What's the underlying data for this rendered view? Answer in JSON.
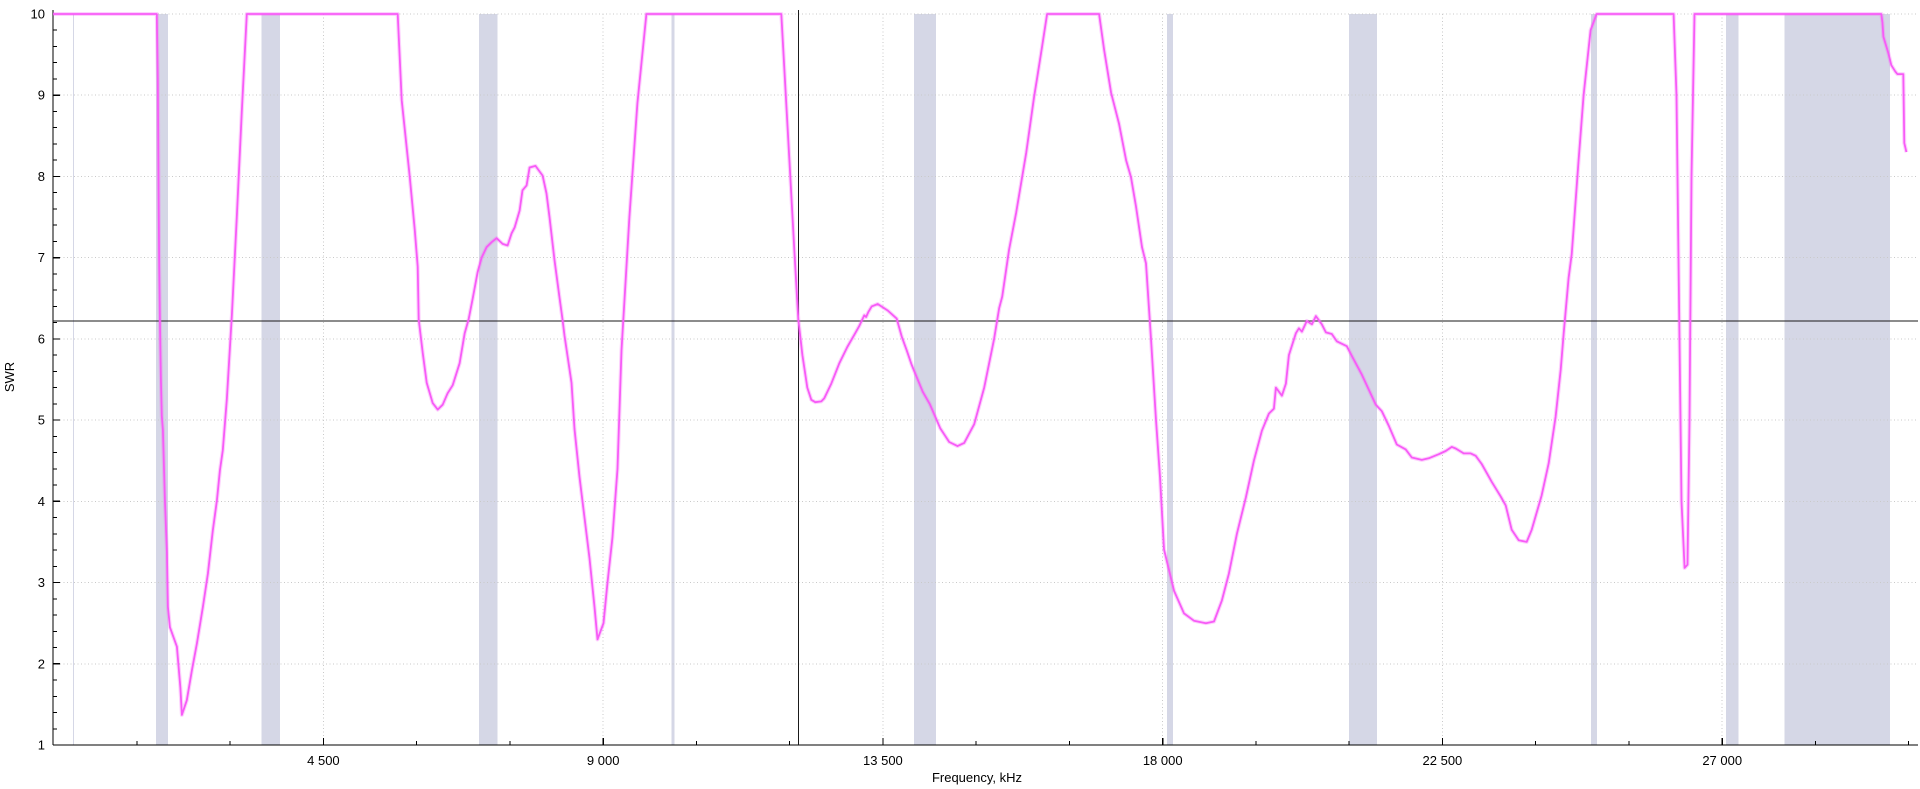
{
  "chart_data": {
    "type": "line",
    "title": "",
    "xlabel": "Frequency, kHz",
    "ylabel": "SWR",
    "x_domain": [
      150,
      30150
    ],
    "y_domain": [
      1,
      10
    ],
    "x_major_ticks": [
      4500,
      9000,
      13500,
      18000,
      22500,
      27000
    ],
    "x_tick_labels": [
      "4 500",
      "9 000",
      "13 500",
      "18 000",
      "22 500",
      "27 000"
    ],
    "x_minor_step": 1500,
    "y_major_ticks": [
      1,
      2,
      3,
      4,
      5,
      6,
      7,
      8,
      9,
      10
    ],
    "y_tick_labels": [
      "1",
      "2",
      "3",
      "4",
      "5",
      "6",
      "7",
      "8",
      "9",
      "10"
    ],
    "y_minor_step": 0.2,
    "grid": {
      "h_lines": [
        2,
        3,
        4,
        5,
        6,
        7,
        8,
        9,
        10
      ],
      "style": "dotted"
    },
    "legend": "none",
    "cursor": {
      "frequency_khz": 12140,
      "swr": 6.22
    },
    "highlight_bands": [
      [
        472,
        479
      ],
      [
        1810,
        2000
      ],
      [
        3500,
        3800
      ],
      [
        7000,
        7300
      ],
      [
        10100,
        10150
      ],
      [
        14000,
        14350
      ],
      [
        18068,
        18168
      ],
      [
        21000,
        21450
      ],
      [
        24890,
        24990
      ],
      [
        27060,
        27260
      ],
      [
        28000,
        29700
      ]
    ],
    "series": [
      {
        "name": "SWR",
        "points": [
          [
            150,
            10
          ],
          [
            1820,
            10
          ],
          [
            1835,
            9.2
          ],
          [
            1848,
            7.8
          ],
          [
            1858,
            6.9
          ],
          [
            1870,
            6.24
          ],
          [
            1885,
            5.5
          ],
          [
            1900,
            5.05
          ],
          [
            1918,
            4.88
          ],
          [
            1950,
            4.02
          ],
          [
            1982,
            3.38
          ],
          [
            1998,
            2.7
          ],
          [
            2030,
            2.45
          ],
          [
            2143,
            2.21
          ],
          [
            2200,
            1.7
          ],
          [
            2223,
            1.37
          ],
          [
            2303,
            1.55
          ],
          [
            2384,
            1.92
          ],
          [
            2464,
            2.25
          ],
          [
            2561,
            2.7
          ],
          [
            2641,
            3.11
          ],
          [
            2721,
            3.64
          ],
          [
            2786,
            4.01
          ],
          [
            2834,
            4.38
          ],
          [
            2882,
            4.63
          ],
          [
            2946,
            5.25
          ],
          [
            3027,
            6.3
          ],
          [
            3107,
            7.5
          ],
          [
            3187,
            8.8
          ],
          [
            3268,
            10
          ],
          [
            5695,
            10
          ],
          [
            5759,
            8.94
          ],
          [
            5888,
            8
          ],
          [
            5968,
            7.35
          ],
          [
            6016,
            6.89
          ],
          [
            6032,
            6.24
          ],
          [
            6097,
            5.83
          ],
          [
            6161,
            5.46
          ],
          [
            6257,
            5.21
          ],
          [
            6338,
            5.13
          ],
          [
            6418,
            5.19
          ],
          [
            6498,
            5.33
          ],
          [
            6579,
            5.43
          ],
          [
            6691,
            5.7
          ],
          [
            6772,
            6.07
          ],
          [
            6836,
            6.24
          ],
          [
            6900,
            6.49
          ],
          [
            6980,
            6.82
          ],
          [
            7045,
            7
          ],
          [
            7125,
            7.13
          ],
          [
            7205,
            7.19
          ],
          [
            7286,
            7.24
          ],
          [
            7382,
            7.17
          ],
          [
            7462,
            7.15
          ],
          [
            7527,
            7.3
          ],
          [
            7575,
            7.37
          ],
          [
            7655,
            7.58
          ],
          [
            7703,
            7.83
          ],
          [
            7768,
            7.89
          ],
          [
            7816,
            8.11
          ],
          [
            7912,
            8.13
          ],
          [
            8025,
            8.01
          ],
          [
            8089,
            7.79
          ],
          [
            8137,
            7.5
          ],
          [
            8217,
            6.97
          ],
          [
            8298,
            6.51
          ],
          [
            8346,
            6.24
          ],
          [
            8378,
            6.04
          ],
          [
            8491,
            5.46
          ],
          [
            8539,
            4.89
          ],
          [
            8619,
            4.3
          ],
          [
            8699,
            3.8
          ],
          [
            8780,
            3.3
          ],
          [
            8860,
            2.7
          ],
          [
            8908,
            2.3
          ],
          [
            9005,
            2.5
          ],
          [
            9069,
            3
          ],
          [
            9149,
            3.55
          ],
          [
            9230,
            4.4
          ],
          [
            9294,
            5.86
          ],
          [
            9422,
            7.5
          ],
          [
            9551,
            8.9
          ],
          [
            9696,
            10
          ],
          [
            11866,
            10
          ],
          [
            11995,
            8.2
          ],
          [
            12075,
            7.1
          ],
          [
            12139,
            6.24
          ],
          [
            12204,
            5.8
          ],
          [
            12284,
            5.4
          ],
          [
            12348,
            5.25
          ],
          [
            12413,
            5.22
          ],
          [
            12509,
            5.23
          ],
          [
            12557,
            5.27
          ],
          [
            12670,
            5.45
          ],
          [
            12798,
            5.7
          ],
          [
            12927,
            5.9
          ],
          [
            13039,
            6.05
          ],
          [
            13120,
            6.16
          ],
          [
            13200,
            6.29
          ],
          [
            13230,
            6.27
          ],
          [
            13264,
            6.33
          ],
          [
            13320,
            6.4
          ],
          [
            13416,
            6.43
          ],
          [
            13577,
            6.35
          ],
          [
            13722,
            6.25
          ],
          [
            13802,
            6.03
          ],
          [
            13883,
            5.86
          ],
          [
            13963,
            5.68
          ],
          [
            14043,
            5.53
          ],
          [
            14140,
            5.35
          ],
          [
            14252,
            5.2
          ],
          [
            14421,
            4.9
          ],
          [
            14566,
            4.73
          ],
          [
            14700,
            4.68
          ],
          [
            14807,
            4.72
          ],
          [
            14968,
            4.95
          ],
          [
            15129,
            5.4
          ],
          [
            15289,
            6
          ],
          [
            15370,
            6.38
          ],
          [
            15418,
            6.52
          ],
          [
            15530,
            7.1
          ],
          [
            15643,
            7.55
          ],
          [
            15804,
            8.29
          ],
          [
            15932,
            8.98
          ],
          [
            15980,
            9.21
          ],
          [
            16061,
            9.6
          ],
          [
            16141,
            10
          ],
          [
            16977,
            10
          ],
          [
            17057,
            9.56
          ],
          [
            17170,
            9.03
          ],
          [
            17298,
            8.65
          ],
          [
            17411,
            8.2
          ],
          [
            17491,
            7.99
          ],
          [
            17571,
            7.63
          ],
          [
            17668,
            7.13
          ],
          [
            17732,
            6.93
          ],
          [
            17812,
            6
          ],
          [
            17893,
            5
          ],
          [
            17957,
            4.3
          ],
          [
            18021,
            3.41
          ],
          [
            18182,
            2.9
          ],
          [
            18343,
            2.62
          ],
          [
            18503,
            2.53
          ],
          [
            18696,
            2.5
          ],
          [
            18825,
            2.52
          ],
          [
            18953,
            2.78
          ],
          [
            19066,
            3.11
          ],
          [
            19194,
            3.6
          ],
          [
            19339,
            4.05
          ],
          [
            19468,
            4.5
          ],
          [
            19596,
            4.87
          ],
          [
            19709,
            5.08
          ],
          [
            19789,
            5.14
          ],
          [
            19821,
            5.4
          ],
          [
            19918,
            5.3
          ],
          [
            19982,
            5.45
          ],
          [
            20030,
            5.8
          ],
          [
            20143,
            6.07
          ],
          [
            20191,
            6.13
          ],
          [
            20239,
            6.09
          ],
          [
            20319,
            6.22
          ],
          [
            20400,
            6.18
          ],
          [
            20464,
            6.28
          ],
          [
            20560,
            6.18
          ],
          [
            20625,
            6.08
          ],
          [
            20721,
            6.06
          ],
          [
            20801,
            5.97
          ],
          [
            20962,
            5.91
          ],
          [
            21043,
            5.79
          ],
          [
            21203,
            5.56
          ],
          [
            21428,
            5.19
          ],
          [
            21525,
            5.11
          ],
          [
            21637,
            4.93
          ],
          [
            21766,
            4.7
          ],
          [
            21910,
            4.64
          ],
          [
            22007,
            4.54
          ],
          [
            22168,
            4.51
          ],
          [
            22280,
            4.53
          ],
          [
            22441,
            4.58
          ],
          [
            22553,
            4.62
          ],
          [
            22650,
            4.67
          ],
          [
            22714,
            4.65
          ],
          [
            22843,
            4.59
          ],
          [
            22955,
            4.59
          ],
          [
            23036,
            4.56
          ],
          [
            23132,
            4.46
          ],
          [
            23293,
            4.24
          ],
          [
            23437,
            4.06
          ],
          [
            23518,
            3.95
          ],
          [
            23614,
            3.65
          ],
          [
            23727,
            3.52
          ],
          [
            23855,
            3.5
          ],
          [
            23936,
            3.65
          ],
          [
            24096,
            4.07
          ],
          [
            24209,
            4.47
          ],
          [
            24321,
            5.04
          ],
          [
            24402,
            5.62
          ],
          [
            24450,
            6.07
          ],
          [
            24530,
            6.75
          ],
          [
            24579,
            7.04
          ],
          [
            24611,
            7.37
          ],
          [
            24691,
            8.2
          ],
          [
            24771,
            9
          ],
          [
            24884,
            9.8
          ],
          [
            24980,
            10
          ],
          [
            26218,
            10
          ],
          [
            26266,
            9
          ],
          [
            26314,
            6
          ],
          [
            26346,
            4
          ],
          [
            26395,
            3.18
          ],
          [
            26443,
            3.22
          ],
          [
            26475,
            5
          ],
          [
            26507,
            8
          ],
          [
            26555,
            10
          ],
          [
            29560,
            10
          ],
          [
            29577,
            9.9
          ],
          [
            29593,
            9.72
          ],
          [
            29673,
            9.52
          ],
          [
            29721,
            9.37
          ],
          [
            29786,
            9.29
          ],
          [
            29818,
            9.26
          ],
          [
            29914,
            9.26
          ],
          [
            29930,
            8.41
          ],
          [
            29963,
            8.3
          ]
        ]
      }
    ],
    "colors": {
      "curve": "#f75bf7",
      "curve_halo": "rgba(247,91,247,0.28)",
      "band": "#d5d7e6",
      "grid": "#c9c9c9",
      "axis": "#000000",
      "crosshair": "#1a1a1a",
      "background": "#ffffff",
      "text": "#000000"
    }
  }
}
